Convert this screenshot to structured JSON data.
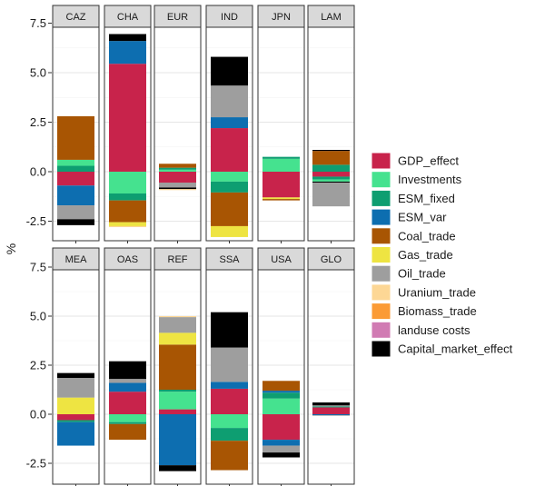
{
  "chart_data": {
    "type": "bar",
    "subtype": "stacked-facet",
    "ylabel": "%",
    "ylim": [
      -3.2,
      7.5
    ],
    "ylim_bottom": [
      -3.2,
      7.5
    ],
    "yticks": [
      -2.5,
      0,
      2.5,
      5,
      7.5
    ],
    "ytick_labels": [
      "-2.5",
      "0.0",
      "2.5",
      "5.0",
      "7.5"
    ],
    "grid": true,
    "legend_position": "right",
    "series": [
      {
        "name": "GDP_effect",
        "color": "#C8234B"
      },
      {
        "name": "Investments",
        "color": "#45E28F"
      },
      {
        "name": "ESM_fixed",
        "color": "#0E9E71"
      },
      {
        "name": "ESM_var",
        "color": "#0D6EB0"
      },
      {
        "name": "Coal_trade",
        "color": "#A85503"
      },
      {
        "name": "Gas_trade",
        "color": "#EEE442"
      },
      {
        "name": "Oil_trade",
        "color": "#9E9E9E"
      },
      {
        "name": "Uranium_trade",
        "color": "#FDD795"
      },
      {
        "name": "Biomass_trade",
        "color": "#FB9B35"
      },
      {
        "name": "landuse costs",
        "color": "#D17BB3"
      },
      {
        "name": "Capital_market_effect",
        "color": "#000000"
      }
    ],
    "panels": [
      {
        "label": "CAZ",
        "row": 0,
        "pos": [
          {
            "s": "ESM_fixed",
            "v": 0.3
          },
          {
            "s": "Investments",
            "v": 0.3
          },
          {
            "s": "Coal_trade",
            "v": 2.2
          }
        ],
        "neg": [
          {
            "s": "GDP_effect",
            "v": -0.7
          },
          {
            "s": "ESM_var",
            "v": -1.0
          },
          {
            "s": "Oil_trade",
            "v": -0.7
          },
          {
            "s": "Capital_market_effect",
            "v": -0.3
          }
        ]
      },
      {
        "label": "CHA",
        "row": 0,
        "pos": [
          {
            "s": "GDP_effect",
            "v": 5.45
          },
          {
            "s": "ESM_var",
            "v": 1.15
          },
          {
            "s": "Capital_market_effect",
            "v": 0.35
          }
        ],
        "neg": [
          {
            "s": "Investments",
            "v": -1.1
          },
          {
            "s": "ESM_fixed",
            "v": -0.35
          },
          {
            "s": "Coal_trade",
            "v": -1.1
          },
          {
            "s": "Gas_trade",
            "v": -0.2
          },
          {
            "s": "Uranium_trade",
            "v": -0.05
          }
        ]
      },
      {
        "label": "EUR",
        "row": 0,
        "pos": [
          {
            "s": "Investments",
            "v": 0.1
          },
          {
            "s": "ESM_fixed",
            "v": 0.1
          },
          {
            "s": "Coal_trade",
            "v": 0.2
          }
        ],
        "neg": [
          {
            "s": "GDP_effect",
            "v": -0.55
          },
          {
            "s": "Oil_trade",
            "v": -0.25
          },
          {
            "s": "Capital_market_effect",
            "v": -0.08
          },
          {
            "s": "Uranium_trade",
            "v": -0.05
          }
        ]
      },
      {
        "label": "IND",
        "row": 0,
        "pos": [
          {
            "s": "GDP_effect",
            "v": 2.2
          },
          {
            "s": "ESM_var",
            "v": 0.55
          },
          {
            "s": "Oil_trade",
            "v": 1.6
          },
          {
            "s": "Capital_market_effect",
            "v": 1.45
          }
        ],
        "neg": [
          {
            "s": "Investments",
            "v": -0.5
          },
          {
            "s": "ESM_fixed",
            "v": -0.55
          },
          {
            "s": "Coal_trade",
            "v": -1.7
          },
          {
            "s": "Gas_trade",
            "v": -0.55
          }
        ]
      },
      {
        "label": "JPN",
        "row": 0,
        "pos": [
          {
            "s": "Investments",
            "v": 0.65
          },
          {
            "s": "ESM_fixed",
            "v": 0.1
          }
        ],
        "neg": [
          {
            "s": "GDP_effect",
            "v": -1.3
          },
          {
            "s": "Gas_trade",
            "v": -0.08
          },
          {
            "s": "Coal_trade",
            "v": -0.07
          }
        ]
      },
      {
        "label": "LAM",
        "row": 0,
        "pos": [
          {
            "s": "ESM_fixed",
            "v": 0.35
          },
          {
            "s": "Coal_trade",
            "v": 0.7
          },
          {
            "s": "Capital_market_effect",
            "v": 0.05
          }
        ],
        "neg": [
          {
            "s": "GDP_effect",
            "v": -0.25
          },
          {
            "s": "ESM_fixed",
            "v": -0.15
          },
          {
            "s": "Investments",
            "v": -0.1
          },
          {
            "s": "Capital_market_effect",
            "v": -0.05
          },
          {
            "s": "Oil_trade",
            "v": -1.2
          }
        ]
      },
      {
        "label": "MEA",
        "row": 1,
        "pos": [
          {
            "s": "Gas_trade",
            "v": 0.85
          },
          {
            "s": "Oil_trade",
            "v": 1.0
          },
          {
            "s": "Capital_market_effect",
            "v": 0.25
          }
        ],
        "neg": [
          {
            "s": "GDP_effect",
            "v": -0.3
          },
          {
            "s": "ESM_fixed",
            "v": -0.1
          },
          {
            "s": "ESM_var",
            "v": -1.2
          }
        ]
      },
      {
        "label": "OAS",
        "row": 1,
        "pos": [
          {
            "s": "GDP_effect",
            "v": 1.15
          },
          {
            "s": "ESM_var",
            "v": 0.45
          },
          {
            "s": "Oil_trade",
            "v": 0.2
          },
          {
            "s": "Capital_market_effect",
            "v": 0.9
          }
        ],
        "neg": [
          {
            "s": "Investments",
            "v": -0.4
          },
          {
            "s": "ESM_fixed",
            "v": -0.1
          },
          {
            "s": "Coal_trade",
            "v": -0.8
          }
        ]
      },
      {
        "label": "REF",
        "row": 1,
        "pos": [
          {
            "s": "GDP_effect",
            "v": 0.25
          },
          {
            "s": "Investments",
            "v": 0.9
          },
          {
            "s": "ESM_fixed",
            "v": 0.1
          },
          {
            "s": "Coal_trade",
            "v": 2.3
          },
          {
            "s": "Gas_trade",
            "v": 0.6
          },
          {
            "s": "Oil_trade",
            "v": 0.8
          },
          {
            "s": "Uranium_trade",
            "v": 0.05
          }
        ],
        "neg": [
          {
            "s": "ESM_var",
            "v": -2.6
          },
          {
            "s": "Capital_market_effect",
            "v": -0.3
          }
        ]
      },
      {
        "label": "SSA",
        "row": 1,
        "pos": [
          {
            "s": "GDP_effect",
            "v": 1.3
          },
          {
            "s": "ESM_var",
            "v": 0.35
          },
          {
            "s": "Oil_trade",
            "v": 1.75
          },
          {
            "s": "Capital_market_effect",
            "v": 1.8
          }
        ],
        "neg": [
          {
            "s": "Investments",
            "v": -0.7
          },
          {
            "s": "ESM_fixed",
            "v": -0.65
          },
          {
            "s": "Coal_trade",
            "v": -1.5
          }
        ]
      },
      {
        "label": "USA",
        "row": 1,
        "pos": [
          {
            "s": "Investments",
            "v": 0.8
          },
          {
            "s": "ESM_fixed",
            "v": 0.3
          },
          {
            "s": "ESM_var",
            "v": 0.1
          },
          {
            "s": "Coal_trade",
            "v": 0.5
          }
        ],
        "neg": [
          {
            "s": "GDP_effect",
            "v": -1.3
          },
          {
            "s": "ESM_var",
            "v": -0.3
          },
          {
            "s": "Oil_trade",
            "v": -0.35
          },
          {
            "s": "Capital_market_effect",
            "v": -0.25
          }
        ]
      },
      {
        "label": "GLO",
        "row": 1,
        "pos": [
          {
            "s": "GDP_effect",
            "v": 0.35
          },
          {
            "s": "ESM_fixed",
            "v": 0.05
          },
          {
            "s": "Oil_trade",
            "v": 0.05
          },
          {
            "s": "Capital_market_effect",
            "v": 0.15
          }
        ],
        "neg": [
          {
            "s": "ESM_var",
            "v": -0.05
          },
          {
            "s": "Oil_trade",
            "v": -0.03
          }
        ]
      }
    ]
  }
}
